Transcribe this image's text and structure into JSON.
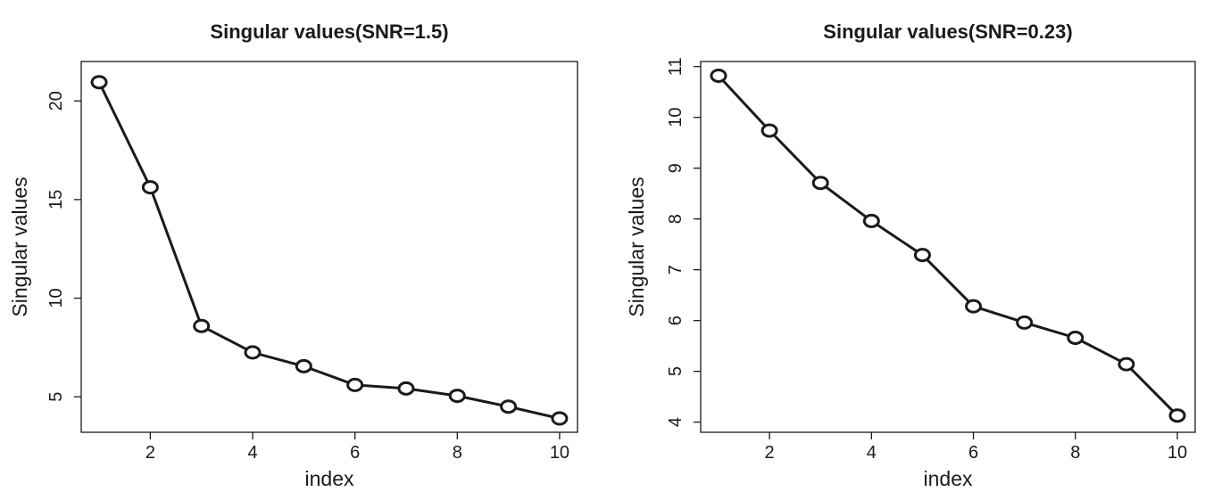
{
  "chart_data": [
    {
      "type": "line",
      "title": "Singular values(SNR=1.5)",
      "xlabel": "index",
      "ylabel": "Singular values",
      "x": [
        1,
        2,
        3,
        4,
        5,
        6,
        7,
        8,
        9,
        10
      ],
      "y": [
        20.95,
        15.62,
        8.59,
        7.25,
        6.55,
        5.6,
        5.42,
        5.05,
        4.5,
        3.9
      ],
      "xticks": [
        2,
        4,
        6,
        8,
        10
      ],
      "yticks": [
        5,
        10,
        15,
        20
      ],
      "xlim": [
        0.65,
        10.35
      ],
      "ylim": [
        3.2,
        22.0
      ],
      "grid": false,
      "markers": "open-circle"
    },
    {
      "type": "line",
      "title": "Singular values(SNR=0.23)",
      "xlabel": "index",
      "ylabel": "Singular values",
      "x": [
        1,
        2,
        3,
        4,
        5,
        6,
        7,
        8,
        9,
        10
      ],
      "y": [
        10.82,
        9.74,
        8.71,
        7.96,
        7.29,
        6.28,
        5.96,
        5.66,
        5.14,
        4.13
      ],
      "xticks": [
        2,
        4,
        6,
        8,
        10
      ],
      "yticks": [
        4,
        5,
        6,
        7,
        8,
        9,
        10,
        11
      ],
      "xlim": [
        0.65,
        10.35
      ],
      "ylim": [
        3.8,
        11.1
      ],
      "grid": false,
      "markers": "open-circle"
    }
  ]
}
